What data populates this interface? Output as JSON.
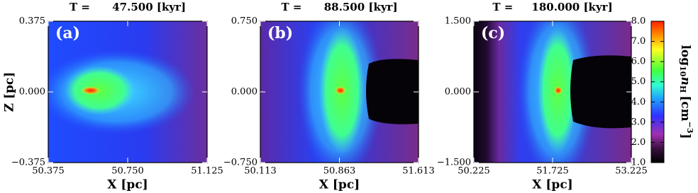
{
  "chart_data": [
    {
      "type": "image",
      "title": "T =      47.500 [kyr]",
      "panel_label": "(a)",
      "xlabel": "X [pc]",
      "ylabel": "Z [pc]",
      "xlim": [
        50.375,
        51.125
      ],
      "xticks": [
        50.375,
        {
          "value": 50.75,
          "label": "50.750"
        },
        51.125
      ],
      "ylim": [
        -0.375,
        0.375
      ],
      "yticks": [
        {
          "value": -0.375,
          "label": "−0.375"
        },
        {
          "value": 0,
          "label": "0.000"
        },
        0.375
      ]
    },
    {
      "type": "image",
      "title": "T =      88.500 [kyr]",
      "panel_label": "(b)",
      "xlabel": "X [pc]",
      "xlim": [
        50.113,
        51.613
      ],
      "xticks": [
        50.113,
        50.863,
        51.613
      ],
      "ylim": [
        -0.75,
        0.75
      ],
      "yticks": [
        {
          "value": -0.75,
          "label": "−0.750"
        },
        {
          "value": 0,
          "label": "0.000"
        },
        {
          "value": 0.75,
          "label": "0.750"
        }
      ]
    },
    {
      "type": "image",
      "title": "T =     180.000 [kyr]",
      "panel_label": "(c)",
      "xlabel": "X [pc]",
      "xlim": [
        50.225,
        53.225
      ],
      "xticks": [
        50.225,
        51.725,
        53.225
      ],
      "ylim": [
        -1.5,
        1.5
      ],
      "yticks": [
        {
          "value": -1.5,
          "label": "−1.500"
        },
        {
          "value": 0,
          "label": "0.000"
        },
        {
          "value": 1.5,
          "label": "1.500"
        }
      ]
    }
  ],
  "colorbar": {
    "label_parts": [
      "log",
      "10",
      "n",
      "H",
      "[cm",
      "−3",
      "]"
    ],
    "ylim": [
      1,
      8
    ],
    "yticks": [
      {
        "value": 1,
        "label": "1.0"
      },
      {
        "value": 2,
        "label": "2.0"
      },
      {
        "value": 3,
        "label": "3.0"
      },
      {
        "value": 4,
        "label": "4.0"
      },
      {
        "value": 5,
        "label": "5.0"
      },
      {
        "value": 6,
        "label": "6.0"
      },
      {
        "value": 7,
        "label": "7.0"
      },
      {
        "value": 8,
        "label": "8.0"
      }
    ]
  }
}
